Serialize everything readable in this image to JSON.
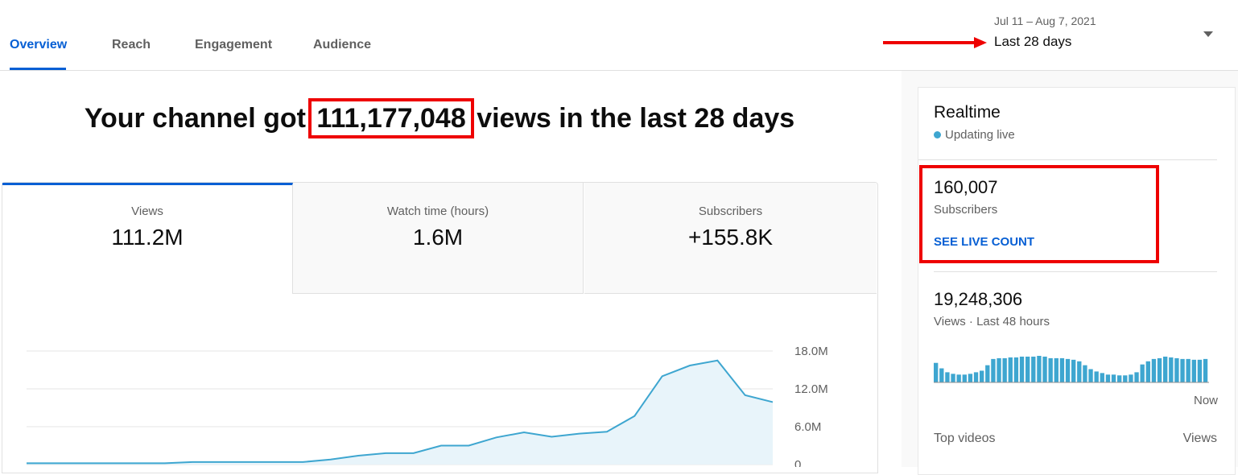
{
  "tabs": [
    "Overview",
    "Reach",
    "Engagement",
    "Audience"
  ],
  "date_range": {
    "dates": "Jul 11 – Aug 7, 2021",
    "label": "Last 28 days"
  },
  "headline": {
    "before": "Your channel got",
    "highlight": "111,177,048",
    "after": "views in the last 28 days"
  },
  "metrics": [
    {
      "label": "Views",
      "value": "111.2M"
    },
    {
      "label": "Watch time (hours)",
      "value": "1.6M"
    },
    {
      "label": "Subscribers",
      "value": "+155.8K"
    }
  ],
  "chart_data": {
    "type": "line",
    "categories": [
      null,
      null,
      null,
      null,
      null,
      null,
      null,
      null,
      null,
      null,
      null,
      null,
      null,
      null,
      null,
      null,
      null,
      null,
      null,
      null,
      null,
      null,
      null,
      null,
      null,
      null,
      null,
      null
    ],
    "values": [
      200000,
      200000,
      200000,
      200000,
      200000,
      200000,
      400000,
      400000,
      400000,
      400000,
      400000,
      800000,
      1400000,
      1800000,
      1800000,
      3000000,
      3000000,
      4300000,
      5100000,
      4400000,
      4900000,
      5200000,
      7700000,
      14000000,
      15700000,
      16500000,
      11000000,
      9900000
    ],
    "color": "#3ea6d0",
    "area_color": "#e8f4fa",
    "ylim": [
      0,
      18000000
    ],
    "yticks": [
      {
        "value": 0,
        "label": "0"
      },
      {
        "value": 6000000,
        "label": "6.0M"
      },
      {
        "value": 12000000,
        "label": "12.0M"
      },
      {
        "value": 18000000,
        "label": "18.0M"
      }
    ],
    "grid": true
  },
  "realtime": {
    "title": "Realtime",
    "status": "Updating live",
    "subscribers": {
      "value": "160,007",
      "label": "Subscribers",
      "link": "SEE LIVE COUNT"
    },
    "views": {
      "value": "19,248,306",
      "label": "Views · Last 48 hours"
    },
    "chart": {
      "type": "bar",
      "color": "#3ea6d0",
      "end_label": "Now",
      "values": [
        25,
        18,
        13,
        11,
        10,
        10,
        11,
        13,
        15,
        22,
        30,
        31,
        31,
        32,
        32,
        33,
        33,
        33,
        34,
        33,
        31,
        31,
        31,
        30,
        29,
        27,
        22,
        17,
        14,
        12,
        10,
        10,
        9,
        9,
        10,
        13,
        23,
        27,
        30,
        31,
        33,
        32,
        31,
        30,
        30,
        29,
        29,
        30
      ]
    },
    "top_videos": {
      "label": "Top videos",
      "column": "Views"
    }
  }
}
